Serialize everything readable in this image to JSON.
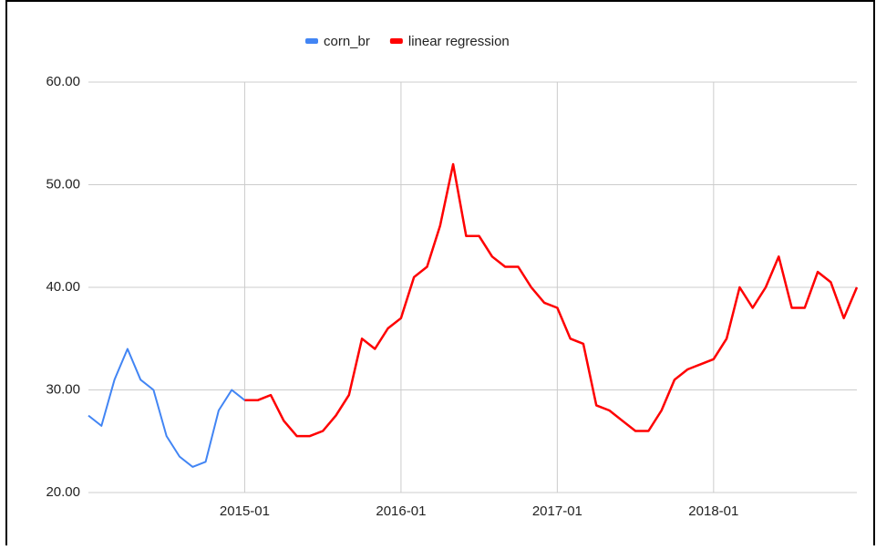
{
  "chart_data": {
    "type": "line",
    "x": [
      "2014-01",
      "2014-02",
      "2014-03",
      "2014-04",
      "2014-05",
      "2014-06",
      "2014-07",
      "2014-08",
      "2014-09",
      "2014-10",
      "2014-11",
      "2014-12",
      "2015-01",
      "2015-02",
      "2015-03",
      "2015-04",
      "2015-05",
      "2015-06",
      "2015-07",
      "2015-08",
      "2015-09",
      "2015-10",
      "2015-11",
      "2015-12",
      "2016-01",
      "2016-02",
      "2016-03",
      "2016-04",
      "2016-05",
      "2016-06",
      "2016-07",
      "2016-08",
      "2016-09",
      "2016-10",
      "2016-11",
      "2016-12",
      "2017-01",
      "2017-02",
      "2017-03",
      "2017-04",
      "2017-05",
      "2017-06",
      "2017-07",
      "2017-08",
      "2017-09",
      "2017-10",
      "2017-11",
      "2017-12",
      "2018-01",
      "2018-02",
      "2018-03",
      "2018-04",
      "2018-05",
      "2018-06",
      "2018-07",
      "2018-08",
      "2018-09",
      "2018-10",
      "2018-11",
      "2018-12"
    ],
    "series": [
      {
        "name": "corn_br",
        "color": "#4285f4",
        "values": [
          27.5,
          26.5,
          31,
          34,
          31,
          30,
          25.5,
          23.5,
          22.5,
          23,
          28,
          30,
          29,
          29,
          29.5,
          27,
          25.5,
          25.5,
          26,
          27.5,
          29.5,
          35,
          34,
          36,
          37,
          41,
          42,
          46,
          52,
          45,
          45,
          43,
          42,
          42,
          40,
          38.5,
          38,
          35,
          34.5,
          28.5,
          28,
          27,
          26,
          26,
          28,
          31,
          32,
          32.5,
          33,
          35,
          40,
          38,
          40,
          43,
          38,
          38,
          41.5,
          40.5,
          37,
          40
        ]
      },
      {
        "name": "linear regression",
        "color": "#ff0000",
        "values": [
          null,
          null,
          null,
          null,
          null,
          null,
          null,
          null,
          null,
          null,
          null,
          null,
          29,
          29,
          29.5,
          27,
          25.5,
          25.5,
          26,
          27.5,
          29.5,
          35,
          34,
          36,
          37,
          41,
          42,
          46,
          52,
          45,
          45,
          43,
          42,
          42,
          40,
          38.5,
          38,
          35,
          34.5,
          28.5,
          28,
          27,
          26,
          26,
          28,
          31,
          32,
          32.5,
          33,
          35,
          40,
          38,
          40,
          43,
          38,
          38,
          41.5,
          40.5,
          37,
          40
        ]
      }
    ],
    "xlim": [
      "2014-01",
      "2018-12"
    ],
    "xticks": [
      "2015-01",
      "2016-01",
      "2017-01",
      "2018-01"
    ],
    "ylim": [
      20,
      60
    ],
    "yticks": [
      {
        "value": 20,
        "label": "20.00"
      },
      {
        "value": 30,
        "label": "30.00"
      },
      {
        "value": 40,
        "label": "40.00"
      },
      {
        "value": 50,
        "label": "50.00"
      },
      {
        "value": 60,
        "label": "60.00"
      }
    ],
    "grid": true,
    "legend": "top"
  }
}
